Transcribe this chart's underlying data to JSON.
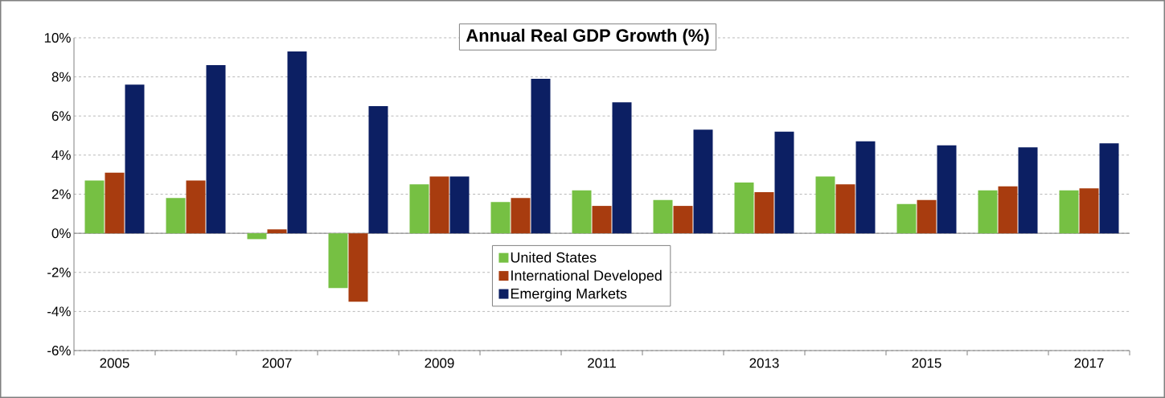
{
  "chart_data": {
    "type": "bar",
    "title": "Annual Real GDP Growth (%)",
    "categories": [
      "2005",
      null,
      "2007",
      null,
      "2009",
      null,
      "2011",
      null,
      "2013",
      null,
      "2015",
      null,
      "2017"
    ],
    "series": [
      {
        "name": "United States",
        "color": "#76c043",
        "values": [
          2.7,
          1.8,
          -0.3,
          -2.8,
          2.5,
          1.6,
          2.2,
          1.7,
          2.6,
          2.9,
          1.5,
          2.2,
          2.2
        ]
      },
      {
        "name": "International Developed",
        "color": "#a83c0f",
        "values": [
          3.1,
          2.7,
          0.2,
          -3.5,
          2.9,
          1.8,
          1.4,
          1.4,
          2.1,
          2.5,
          1.7,
          2.4,
          2.3
        ]
      },
      {
        "name": "Emerging Markets",
        "color": "#0c1f63",
        "values": [
          7.6,
          8.6,
          9.3,
          6.5,
          2.9,
          7.9,
          6.7,
          5.3,
          5.2,
          4.7,
          4.5,
          4.4,
          4.6
        ]
      }
    ],
    "ylim": [
      -6,
      10
    ],
    "yticks": [
      {
        "value": -6,
        "label": "-6%"
      },
      {
        "value": -4,
        "label": "-4%"
      },
      {
        "value": -2,
        "label": "-2%"
      },
      {
        "value": 0,
        "label": "0%"
      },
      {
        "value": 2,
        "label": "2%"
      },
      {
        "value": 4,
        "label": "4%"
      },
      {
        "value": 6,
        "label": "6%"
      },
      {
        "value": 8,
        "label": "8%"
      },
      {
        "value": 10,
        "label": "10%"
      }
    ],
    "grid": "y",
    "legend": "bottom"
  }
}
